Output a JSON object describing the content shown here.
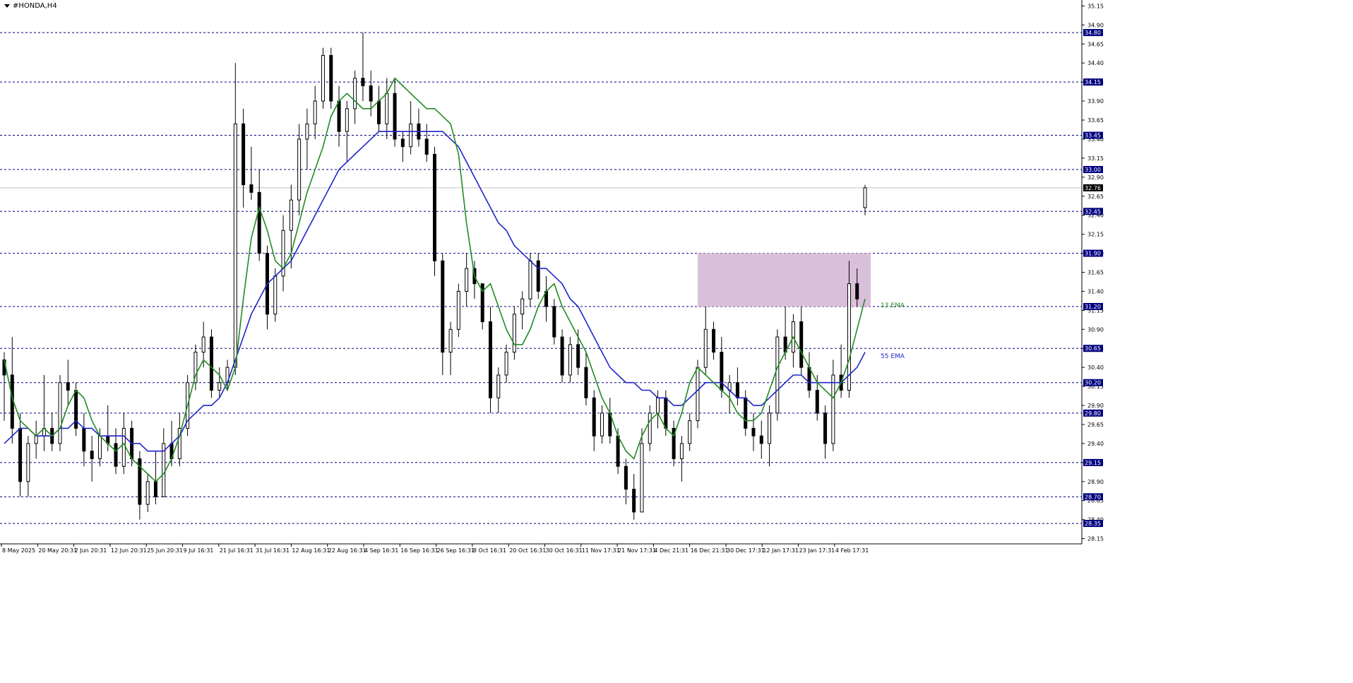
{
  "window": {
    "title": "#HONDA,H4"
  },
  "colors": {
    "background": "#ffffff",
    "axis": "#000000",
    "grid_dashed": "#000080",
    "candle": "#000000",
    "ema13": "#228b22",
    "ema55": "#1f24c8",
    "zone_fill": "#d8bcd8",
    "price_line": "#c0c0c0",
    "label_bg": "#000080"
  },
  "chart_data": {
    "type": "candlestick",
    "symbol": "#HONDA",
    "timeframe": "H4",
    "y_ticks": [
      "35.15",
      "34.90",
      "34.65",
      "34.40",
      "34.15",
      "33.90",
      "33.65",
      "33.40",
      "33.15",
      "32.90",
      "32.65",
      "32.40",
      "32.15",
      "31.90",
      "31.65",
      "31.40",
      "31.15",
      "30.90",
      "30.65",
      "30.40",
      "30.15",
      "29.90",
      "29.65",
      "29.40",
      "29.15",
      "28.90",
      "28.65",
      "28.40",
      "28.15"
    ],
    "y_range": [
      28.1,
      35.2
    ],
    "levels": [
      "34.80",
      "34.15",
      "33.45",
      "33.00",
      "32.45",
      "31.90",
      "31.20",
      "30.65",
      "30.20",
      "29.80",
      "29.15",
      "28.70",
      "28.35"
    ],
    "current_price": "32.76",
    "x_labels": [
      "8 May 2025",
      "20 May 20:31",
      "2 Jun 20:31",
      "12 Jun 20:31",
      "25 Jun 20:31",
      "9 Jul 16:31",
      "21 Jul 16:31",
      "31 Jul 16:31",
      "12 Aug 16:31",
      "22 Aug 16:31",
      "4 Sep 16:31",
      "16 Sep 16:31",
      "26 Sep 16:31",
      "8 Oct 16:31",
      "20 Oct 16:31",
      "30 Oct 16:31",
      "11 Nov 17:31",
      "21 Nov 17:31",
      "4 Dec 21:31",
      "16 Dec 21:31",
      "30 Dec 17:31",
      "12 Jan 17:31",
      "23 Jan 17:31",
      "4 Feb 17:31"
    ],
    "zone": {
      "top": 31.9,
      "bottom": 31.2
    },
    "ema_labels": {
      "ema13": "13 EMA",
      "ema55": "55 EMA"
    },
    "ema13": [
      30.5,
      30.0,
      29.7,
      29.6,
      29.5,
      29.6,
      29.5,
      29.6,
      29.9,
      30.1,
      30.0,
      29.7,
      29.5,
      29.4,
      29.3,
      29.4,
      29.2,
      29.1,
      29.0,
      28.9,
      29.0,
      29.2,
      29.5,
      29.9,
      30.3,
      30.5,
      30.4,
      30.3,
      30.1,
      30.4,
      31.3,
      32.1,
      32.5,
      32.2,
      31.8,
      31.7,
      31.9,
      32.3,
      32.7,
      33.0,
      33.3,
      33.7,
      33.9,
      34.0,
      33.9,
      33.8,
      33.8,
      33.9,
      34.0,
      34.2,
      34.1,
      34.0,
      33.9,
      33.8,
      33.8,
      33.7,
      33.6,
      33.2,
      32.3,
      31.6,
      31.4,
      31.5,
      31.2,
      30.9,
      30.7,
      30.7,
      30.9,
      31.2,
      31.4,
      31.5,
      31.2,
      31.0,
      30.8,
      30.6,
      30.3,
      30.0,
      29.8,
      29.5,
      29.3,
      29.2,
      29.5,
      29.7,
      29.8,
      29.6,
      29.5,
      29.8,
      30.2,
      30.4,
      30.3,
      30.2,
      30.1,
      30.0,
      29.8,
      29.7,
      29.7,
      29.8,
      30.1,
      30.4,
      30.6,
      30.8,
      30.6,
      30.4,
      30.2,
      30.1,
      30.0,
      30.2,
      30.5,
      30.9,
      31.3
    ],
    "ema55": [
      29.4,
      29.5,
      29.6,
      29.6,
      29.5,
      29.5,
      29.5,
      29.6,
      29.6,
      29.7,
      29.6,
      29.6,
      29.5,
      29.5,
      29.5,
      29.5,
      29.4,
      29.4,
      29.3,
      29.3,
      29.3,
      29.4,
      29.5,
      29.7,
      29.8,
      29.9,
      29.9,
      30.0,
      30.2,
      30.5,
      30.8,
      31.1,
      31.3,
      31.5,
      31.6,
      31.7,
      31.8,
      32.0,
      32.2,
      32.4,
      32.6,
      32.8,
      33.0,
      33.1,
      33.2,
      33.3,
      33.4,
      33.5,
      33.5,
      33.5,
      33.5,
      33.5,
      33.5,
      33.5,
      33.5,
      33.5,
      33.4,
      33.3,
      33.1,
      32.9,
      32.7,
      32.5,
      32.3,
      32.2,
      32.0,
      31.9,
      31.8,
      31.7,
      31.7,
      31.6,
      31.5,
      31.3,
      31.2,
      31.0,
      30.8,
      30.6,
      30.4,
      30.3,
      30.2,
      30.2,
      30.1,
      30.1,
      30.0,
      30.0,
      29.9,
      29.9,
      30.0,
      30.1,
      30.2,
      30.2,
      30.2,
      30.1,
      30.0,
      30.0,
      29.9,
      29.9,
      30.0,
      30.1,
      30.2,
      30.3,
      30.3,
      30.2,
      30.2,
      30.2,
      30.2,
      30.2,
      30.3,
      30.4,
      30.6
    ],
    "candles": [
      [
        30.5,
        30.6,
        29.7,
        30.3
      ],
      [
        30.3,
        30.8,
        29.4,
        29.6
      ],
      [
        29.6,
        29.8,
        28.7,
        28.9
      ],
      [
        28.9,
        29.5,
        28.7,
        29.4
      ],
      [
        29.4,
        29.7,
        29.2,
        29.5
      ],
      [
        29.5,
        30.3,
        29.3,
        29.6
      ],
      [
        29.6,
        29.8,
        29.3,
        29.4
      ],
      [
        29.4,
        30.3,
        29.3,
        30.2
      ],
      [
        30.2,
        30.5,
        29.9,
        30.1
      ],
      [
        30.1,
        30.2,
        29.5,
        29.6
      ],
      [
        29.6,
        29.8,
        29.1,
        29.3
      ],
      [
        29.3,
        29.5,
        28.9,
        29.2
      ],
      [
        29.2,
        29.6,
        29.1,
        29.5
      ],
      [
        29.5,
        29.9,
        29.3,
        29.4
      ],
      [
        29.4,
        29.6,
        29.0,
        29.1
      ],
      [
        29.1,
        29.8,
        29.0,
        29.6
      ],
      [
        29.6,
        29.7,
        29.1,
        29.2
      ],
      [
        29.2,
        29.3,
        28.4,
        28.6
      ],
      [
        28.6,
        29.0,
        28.5,
        28.9
      ],
      [
        28.9,
        29.3,
        28.6,
        28.7
      ],
      [
        28.7,
        29.6,
        28.7,
        29.4
      ],
      [
        29.4,
        29.7,
        29.1,
        29.2
      ],
      [
        29.2,
        29.8,
        29.1,
        29.6
      ],
      [
        29.6,
        30.3,
        29.5,
        30.2
      ],
      [
        30.2,
        30.7,
        30.1,
        30.6
      ],
      [
        30.6,
        31.0,
        30.4,
        30.8
      ],
      [
        30.8,
        30.9,
        30.0,
        30.1
      ],
      [
        30.1,
        30.4,
        30.0,
        30.2
      ],
      [
        30.2,
        30.5,
        30.1,
        30.4
      ],
      [
        30.4,
        34.4,
        30.3,
        33.6
      ],
      [
        33.6,
        33.8,
        32.5,
        32.8
      ],
      [
        32.8,
        33.3,
        32.6,
        32.7
      ],
      [
        32.7,
        33.0,
        31.8,
        31.9
      ],
      [
        31.9,
        32.0,
        30.9,
        31.1
      ],
      [
        31.1,
        31.7,
        31.0,
        31.6
      ],
      [
        31.6,
        32.4,
        31.4,
        32.2
      ],
      [
        32.2,
        32.8,
        31.7,
        32.6
      ],
      [
        32.6,
        33.6,
        32.4,
        33.4
      ],
      [
        33.4,
        33.8,
        33.0,
        33.6
      ],
      [
        33.6,
        34.1,
        33.4,
        33.9
      ],
      [
        33.9,
        34.6,
        33.8,
        34.5
      ],
      [
        34.5,
        34.6,
        33.8,
        33.9
      ],
      [
        33.9,
        34.1,
        33.3,
        33.5
      ],
      [
        33.5,
        33.9,
        33.1,
        33.8
      ],
      [
        33.8,
        34.3,
        33.6,
        34.2
      ],
      [
        34.2,
        34.8,
        33.9,
        34.1
      ],
      [
        34.1,
        34.3,
        33.7,
        33.9
      ],
      [
        33.9,
        34.1,
        33.5,
        33.6
      ],
      [
        33.6,
        34.2,
        33.4,
        34.0
      ],
      [
        34.0,
        34.2,
        33.3,
        33.4
      ],
      [
        33.4,
        33.5,
        33.1,
        33.3
      ],
      [
        33.3,
        33.9,
        33.2,
        33.6
      ],
      [
        33.6,
        33.8,
        33.3,
        33.4
      ],
      [
        33.4,
        33.6,
        33.1,
        33.2
      ],
      [
        33.2,
        33.3,
        31.6,
        31.8
      ],
      [
        31.8,
        31.9,
        30.3,
        30.6
      ],
      [
        30.6,
        31.0,
        30.3,
        30.9
      ],
      [
        30.9,
        31.5,
        30.8,
        31.4
      ],
      [
        31.4,
        31.9,
        31.2,
        31.7
      ],
      [
        31.7,
        31.8,
        31.3,
        31.5
      ],
      [
        31.5,
        31.5,
        30.9,
        31.0
      ],
      [
        31.0,
        31.2,
        29.8,
        30.0
      ],
      [
        30.0,
        30.4,
        29.8,
        30.3
      ],
      [
        30.3,
        30.7,
        30.2,
        30.6
      ],
      [
        30.6,
        31.2,
        30.5,
        31.1
      ],
      [
        31.1,
        31.4,
        30.9,
        31.3
      ],
      [
        31.3,
        31.9,
        31.2,
        31.8
      ],
      [
        31.8,
        31.9,
        31.3,
        31.4
      ],
      [
        31.4,
        31.6,
        31.0,
        31.2
      ],
      [
        31.2,
        31.3,
        30.7,
        30.8
      ],
      [
        30.8,
        30.9,
        30.2,
        30.3
      ],
      [
        30.3,
        30.8,
        30.2,
        30.7
      ],
      [
        30.7,
        30.9,
        30.3,
        30.4
      ],
      [
        30.4,
        30.6,
        29.9,
        30.0
      ],
      [
        30.0,
        30.1,
        29.3,
        29.5
      ],
      [
        29.5,
        29.9,
        29.4,
        29.8
      ],
      [
        29.8,
        30.0,
        29.4,
        29.5
      ],
      [
        29.5,
        29.6,
        29.0,
        29.1
      ],
      [
        29.1,
        29.2,
        28.6,
        28.8
      ],
      [
        28.8,
        29.0,
        28.4,
        28.5
      ],
      [
        28.5,
        29.6,
        28.5,
        29.4
      ],
      [
        29.4,
        29.9,
        29.3,
        29.8
      ],
      [
        29.8,
        30.1,
        29.6,
        30.0
      ],
      [
        30.0,
        30.1,
        29.5,
        29.6
      ],
      [
        29.6,
        29.7,
        29.1,
        29.2
      ],
      [
        29.2,
        29.5,
        28.9,
        29.4
      ],
      [
        29.4,
        29.8,
        29.3,
        29.7
      ],
      [
        29.7,
        30.5,
        29.6,
        30.4
      ],
      [
        30.4,
        31.2,
        30.3,
        30.9
      ],
      [
        30.9,
        31.0,
        30.5,
        30.6
      ],
      [
        30.6,
        30.8,
        30.0,
        30.1
      ],
      [
        30.1,
        30.3,
        29.8,
        30.2
      ],
      [
        30.2,
        30.4,
        29.9,
        30.0
      ],
      [
        30.0,
        30.1,
        29.5,
        29.6
      ],
      [
        29.6,
        29.8,
        29.3,
        29.5
      ],
      [
        29.5,
        29.7,
        29.2,
        29.4
      ],
      [
        29.4,
        29.9,
        29.1,
        29.8
      ],
      [
        29.8,
        30.9,
        29.7,
        30.8
      ],
      [
        30.8,
        31.2,
        30.5,
        30.6
      ],
      [
        30.6,
        31.1,
        30.4,
        31.0
      ],
      [
        31.0,
        31.2,
        30.3,
        30.4
      ],
      [
        30.4,
        30.6,
        30.0,
        30.1
      ],
      [
        30.1,
        30.3,
        29.7,
        29.8
      ],
      [
        29.8,
        29.9,
        29.2,
        29.4
      ],
      [
        29.4,
        30.5,
        29.3,
        30.3
      ],
      [
        30.3,
        30.7,
        30.0,
        30.1
      ],
      [
        30.1,
        31.8,
        30.0,
        31.5
      ],
      [
        31.5,
        31.7,
        31.2,
        31.3
      ],
      [
        32.5,
        32.8,
        32.4,
        32.76
      ]
    ]
  }
}
